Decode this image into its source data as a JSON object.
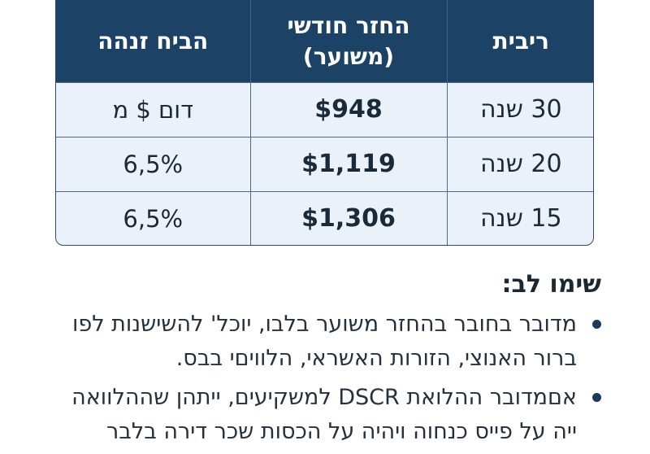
{
  "table": {
    "headers": {
      "term": "ריבית",
      "payment": "החזר חודשי (משוער)",
      "rate": "הביח זנהה"
    },
    "rows": [
      {
        "term": "30 שנה",
        "payment": "$948",
        "rate": "דום $ מ"
      },
      {
        "term": "20 שנה",
        "payment": "$1,119",
        "rate": "6,5%"
      },
      {
        "term": "15 שנה",
        "payment": "$1,306",
        "rate": "6,5%"
      }
    ]
  },
  "notes": {
    "title": "שימו לב:",
    "items": [
      "מדובר בחובר בהחזר משוער בלבו, יוכל' להשישנות לפו ברור האנוצי, הזורות האשראי, הלוויםי בבס.",
      "אםמדובר ההלואת DSCR למשקיעים, ייתהן שההלוואה ייה על פייס כנחוה ויהיה על הכסות שכר דירה בלבר"
    ]
  },
  "colors": {
    "header_bg": "#1c4366",
    "row_bg": "#eaf1f8",
    "border": "#2a4a68",
    "bullet": "#1c3b5c"
  }
}
